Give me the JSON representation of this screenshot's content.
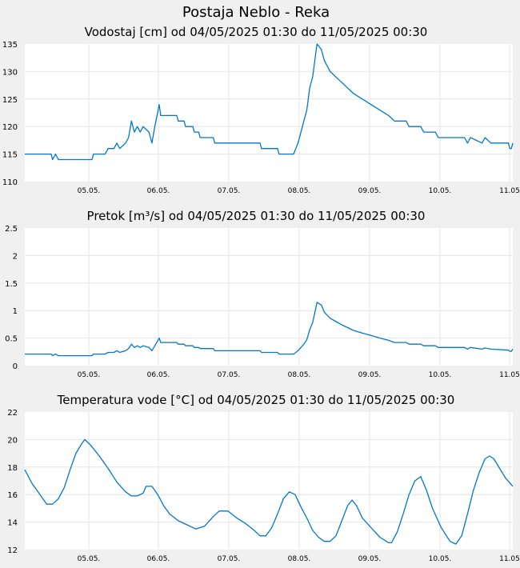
{
  "page": {
    "title": "Postaja Neblo - Reka"
  },
  "chart_data": [
    {
      "type": "line",
      "title": "Vodostaj [cm] od 04/05/2025 01:30 do 11/05/2025 00:30",
      "x_range": [
        "04/05/2025 01:30",
        "11/05/2025 00:30"
      ],
      "x_ticks": [
        "05.05.",
        "06.05.",
        "07.05.",
        "08.05.",
        "09.05.",
        "10.05.",
        "11.05"
      ],
      "y_ticks": [
        "110",
        "115",
        "120",
        "125",
        "130",
        "135"
      ],
      "ylim": [
        110,
        135
      ],
      "grid": true,
      "line_color": "#0077cc",
      "points": [
        [
          "04/05/2025 01:30",
          115
        ],
        [
          "04/05/2025 10:30",
          115
        ],
        [
          "04/05/2025 11:00",
          114
        ],
        [
          "04/05/2025 12:00",
          115
        ],
        [
          "04/05/2025 13:00",
          114
        ],
        [
          "05/05/2025 00:30",
          114
        ],
        [
          "05/05/2025 01:00",
          115
        ],
        [
          "05/05/2025 05:00",
          115
        ],
        [
          "05/05/2025 06:00",
          116
        ],
        [
          "05/05/2025 08:00",
          116
        ],
        [
          "05/05/2025 09:00",
          117
        ],
        [
          "05/05/2025 10:00",
          116
        ],
        [
          "05/05/2025 12:00",
          117
        ],
        [
          "05/05/2025 13:00",
          118
        ],
        [
          "05/05/2025 14:00",
          121
        ],
        [
          "05/05/2025 15:00",
          119
        ],
        [
          "05/05/2025 16:00",
          120
        ],
        [
          "05/05/2025 17:00",
          119
        ],
        [
          "05/05/2025 18:00",
          120
        ],
        [
          "05/05/2025 20:00",
          119
        ],
        [
          "05/05/2025 21:00",
          117
        ],
        [
          "05/05/2025 22:00",
          120
        ],
        [
          "05/05/2025 23:30",
          124
        ],
        [
          "06/05/2025 00:00",
          122
        ],
        [
          "06/05/2025 05:30",
          122
        ],
        [
          "06/05/2025 06:00",
          121
        ],
        [
          "06/05/2025 08:00",
          121
        ],
        [
          "06/05/2025 08:30",
          120
        ],
        [
          "06/05/2025 11:00",
          120
        ],
        [
          "06/05/2025 11:30",
          119
        ],
        [
          "06/05/2025 13:00",
          119
        ],
        [
          "06/05/2025 13:30",
          118
        ],
        [
          "06/05/2025 18:00",
          118
        ],
        [
          "06/05/2025 18:30",
          117
        ],
        [
          "07/05/2025 10:00",
          117
        ],
        [
          "07/05/2025 10:30",
          116
        ],
        [
          "07/05/2025 16:00",
          116
        ],
        [
          "07/05/2025 16:30",
          115
        ],
        [
          "07/05/2025 21:30",
          115
        ],
        [
          "07/05/2025 23:00",
          117
        ],
        [
          "08/05/2025 00:00",
          119
        ],
        [
          "08/05/2025 01:00",
          121
        ],
        [
          "08/05/2025 02:00",
          123
        ],
        [
          "08/05/2025 03:00",
          127
        ],
        [
          "08/05/2025 04:00",
          129
        ],
        [
          "08/05/2025 05:00",
          133
        ],
        [
          "08/05/2025 05:30",
          135
        ],
        [
          "08/05/2025 07:00",
          134
        ],
        [
          "08/05/2025 08:00",
          132
        ],
        [
          "08/05/2025 10:00",
          130
        ],
        [
          "08/05/2025 12:00",
          129
        ],
        [
          "08/05/2025 14:00",
          128
        ],
        [
          "08/05/2025 16:00",
          127
        ],
        [
          "08/05/2025 18:00",
          126
        ],
        [
          "08/05/2025 21:00",
          125
        ],
        [
          "09/05/2025 00:00",
          124
        ],
        [
          "09/05/2025 03:00",
          123
        ],
        [
          "09/05/2025 06:00",
          122
        ],
        [
          "09/05/2025 08:00",
          121
        ],
        [
          "09/05/2025 12:00",
          121
        ],
        [
          "09/05/2025 13:00",
          120
        ],
        [
          "09/05/2025 17:00",
          120
        ],
        [
          "09/05/2025 18:00",
          119
        ],
        [
          "09/05/2025 22:00",
          119
        ],
        [
          "09/05/2025 23:00",
          118
        ],
        [
          "10/05/2025 08:00",
          118
        ],
        [
          "10/05/2025 09:00",
          117
        ],
        [
          "10/05/2025 10:00",
          118
        ],
        [
          "10/05/2025 14:00",
          117
        ],
        [
          "10/05/2025 15:00",
          118
        ],
        [
          "10/05/2025 17:00",
          117
        ],
        [
          "10/05/2025 23:00",
          117
        ],
        [
          "10/05/2025 23:30",
          116
        ],
        [
          "11/05/2025 00:00",
          116
        ],
        [
          "11/05/2025 00:30",
          117
        ]
      ]
    },
    {
      "type": "line",
      "title": "Pretok [m³/s] od 04/05/2025 01:30 do 11/05/2025 00:30",
      "x_range": [
        "04/05/2025 01:30",
        "11/05/2025 00:30"
      ],
      "x_ticks": [
        "05.05.",
        "06.05.",
        "07.05.",
        "08.05.",
        "09.05.",
        "10.05.",
        "11.05"
      ],
      "y_ticks": [
        "0",
        "0.5",
        "1",
        "1.5",
        "2",
        "2.5"
      ],
      "ylim": [
        0,
        2.5
      ],
      "grid": true,
      "line_color": "#0077cc",
      "points": [
        [
          "04/05/2025 01:30",
          0.21
        ],
        [
          "04/05/2025 10:30",
          0.21
        ],
        [
          "04/05/2025 11:00",
          0.18
        ],
        [
          "04/05/2025 12:00",
          0.21
        ],
        [
          "04/05/2025 13:00",
          0.18
        ],
        [
          "05/05/2025 00:30",
          0.18
        ],
        [
          "05/05/2025 01:00",
          0.21
        ],
        [
          "05/05/2025 05:00",
          0.21
        ],
        [
          "05/05/2025 06:00",
          0.24
        ],
        [
          "05/05/2025 08:00",
          0.24
        ],
        [
          "05/05/2025 09:00",
          0.27
        ],
        [
          "05/05/2025 10:00",
          0.24
        ],
        [
          "05/05/2025 12:00",
          0.27
        ],
        [
          "05/05/2025 13:00",
          0.31
        ],
        [
          "05/05/2025 14:00",
          0.39
        ],
        [
          "05/05/2025 15:00",
          0.33
        ],
        [
          "05/05/2025 16:00",
          0.36
        ],
        [
          "05/05/2025 17:00",
          0.33
        ],
        [
          "05/05/2025 18:00",
          0.36
        ],
        [
          "05/05/2025 20:00",
          0.33
        ],
        [
          "05/05/2025 21:00",
          0.27
        ],
        [
          "05/05/2025 22:00",
          0.36
        ],
        [
          "05/05/2025 23:30",
          0.5
        ],
        [
          "06/05/2025 00:00",
          0.42
        ],
        [
          "06/05/2025 05:30",
          0.42
        ],
        [
          "06/05/2025 06:00",
          0.39
        ],
        [
          "06/05/2025 08:00",
          0.39
        ],
        [
          "06/05/2025 08:30",
          0.36
        ],
        [
          "06/05/2025 11:00",
          0.36
        ],
        [
          "06/05/2025 11:30",
          0.33
        ],
        [
          "06/05/2025 13:00",
          0.33
        ],
        [
          "06/05/2025 13:30",
          0.31
        ],
        [
          "06/05/2025 18:00",
          0.31
        ],
        [
          "06/05/2025 18:30",
          0.27
        ],
        [
          "07/05/2025 10:00",
          0.27
        ],
        [
          "07/05/2025 10:30",
          0.24
        ],
        [
          "07/05/2025 16:00",
          0.24
        ],
        [
          "07/05/2025 16:30",
          0.21
        ],
        [
          "07/05/2025 21:30",
          0.21
        ],
        [
          "07/05/2025 23:00",
          0.27
        ],
        [
          "08/05/2025 00:00",
          0.33
        ],
        [
          "08/05/2025 01:00",
          0.39
        ],
        [
          "08/05/2025 02:00",
          0.47
        ],
        [
          "08/05/2025 03:00",
          0.65
        ],
        [
          "08/05/2025 04:00",
          0.78
        ],
        [
          "08/05/2025 05:00",
          1.02
        ],
        [
          "08/05/2025 05:30",
          1.15
        ],
        [
          "08/05/2025 07:00",
          1.1
        ],
        [
          "08/05/2025 08:00",
          0.97
        ],
        [
          "08/05/2025 10:00",
          0.86
        ],
        [
          "08/05/2025 12:00",
          0.8
        ],
        [
          "08/05/2025 14:00",
          0.74
        ],
        [
          "08/05/2025 16:00",
          0.69
        ],
        [
          "08/05/2025 18:00",
          0.64
        ],
        [
          "08/05/2025 21:00",
          0.59
        ],
        [
          "09/05/2025 00:00",
          0.55
        ],
        [
          "09/05/2025 03:00",
          0.5
        ],
        [
          "09/05/2025 06:00",
          0.46
        ],
        [
          "09/05/2025 08:00",
          0.42
        ],
        [
          "09/05/2025 12:00",
          0.42
        ],
        [
          "09/05/2025 13:00",
          0.39
        ],
        [
          "09/05/2025 17:00",
          0.39
        ],
        [
          "09/05/2025 18:00",
          0.36
        ],
        [
          "09/05/2025 22:00",
          0.36
        ],
        [
          "09/05/2025 23:00",
          0.33
        ],
        [
          "10/05/2025 08:00",
          0.33
        ],
        [
          "10/05/2025 09:00",
          0.3
        ],
        [
          "10/05/2025 10:00",
          0.33
        ],
        [
          "10/05/2025 14:00",
          0.3
        ],
        [
          "10/05/2025 15:00",
          0.32
        ],
        [
          "10/05/2025 17:00",
          0.3
        ],
        [
          "10/05/2025 23:00",
          0.28
        ],
        [
          "10/05/2025 23:30",
          0.26
        ],
        [
          "11/05/2025 00:00",
          0.26
        ],
        [
          "11/05/2025 00:30",
          0.3
        ]
      ]
    },
    {
      "type": "line",
      "title": "Temperatura vode [°C] od 04/05/2025 01:30 do 11/05/2025 00:30",
      "x_range": [
        "04/05/2025 01:30",
        "11/05/2025 00:30"
      ],
      "x_ticks": [
        "05.05.",
        "06.05.",
        "07.05.",
        "08.05.",
        "09.05.",
        "10.05.",
        "11.05"
      ],
      "y_ticks": [
        "12",
        "14",
        "16",
        "18",
        "20",
        "22"
      ],
      "ylim": [
        12,
        22
      ],
      "grid": true,
      "line_color": "#0077cc",
      "points": [
        [
          "04/05/2025 01:30",
          17.8
        ],
        [
          "04/05/2025 04:00",
          16.8
        ],
        [
          "04/05/2025 07:00",
          15.9
        ],
        [
          "04/05/2025 09:00",
          15.3
        ],
        [
          "04/05/2025 11:00",
          15.3
        ],
        [
          "04/05/2025 13:00",
          15.7
        ],
        [
          "04/05/2025 15:00",
          16.5
        ],
        [
          "04/05/2025 17:00",
          17.8
        ],
        [
          "04/05/2025 19:00",
          19.0
        ],
        [
          "04/05/2025 21:00",
          19.7
        ],
        [
          "04/05/2025 22:00",
          20.0
        ],
        [
          "05/05/2025 00:00",
          19.6
        ],
        [
          "05/05/2025 03:00",
          18.8
        ],
        [
          "05/05/2025 06:00",
          17.9
        ],
        [
          "05/05/2025 09:00",
          16.9
        ],
        [
          "05/05/2025 12:00",
          16.2
        ],
        [
          "05/05/2025 14:00",
          15.9
        ],
        [
          "05/05/2025 16:00",
          15.9
        ],
        [
          "05/05/2025 18:00",
          16.1
        ],
        [
          "05/05/2025 19:00",
          16.6
        ],
        [
          "05/05/2025 21:00",
          16.6
        ],
        [
          "05/05/2025 23:00",
          16.0
        ],
        [
          "06/05/2025 01:00",
          15.2
        ],
        [
          "06/05/2025 03:00",
          14.6
        ],
        [
          "06/05/2025 06:00",
          14.1
        ],
        [
          "06/05/2025 09:00",
          13.8
        ],
        [
          "06/05/2025 12:00",
          13.5
        ],
        [
          "06/05/2025 15:00",
          13.7
        ],
        [
          "06/05/2025 18:00",
          14.4
        ],
        [
          "06/05/2025 20:00",
          14.8
        ],
        [
          "06/05/2025 23:00",
          14.8
        ],
        [
          "07/05/2025 02:00",
          14.3
        ],
        [
          "07/05/2025 05:00",
          13.9
        ],
        [
          "07/05/2025 08:00",
          13.4
        ],
        [
          "07/05/2025 10:00",
          13.0
        ],
        [
          "07/05/2025 12:00",
          13.0
        ],
        [
          "07/05/2025 14:00",
          13.6
        ],
        [
          "07/05/2025 16:00",
          14.6
        ],
        [
          "07/05/2025 18:00",
          15.7
        ],
        [
          "07/05/2025 20:00",
          16.2
        ],
        [
          "07/05/2025 22:00",
          16.0
        ],
        [
          "08/05/2025 00:00",
          15.1
        ],
        [
          "08/05/2025 02:00",
          14.3
        ],
        [
          "08/05/2025 04:00",
          13.4
        ],
        [
          "08/05/2025 06:00",
          12.9
        ],
        [
          "08/05/2025 08:00",
          12.6
        ],
        [
          "08/05/2025 10:00",
          12.6
        ],
        [
          "08/05/2025 12:00",
          13.0
        ],
        [
          "08/05/2025 14:00",
          14.1
        ],
        [
          "08/05/2025 16:00",
          15.2
        ],
        [
          "08/05/2025 17:30",
          15.6
        ],
        [
          "08/05/2025 19:00",
          15.2
        ],
        [
          "08/05/2025 21:00",
          14.3
        ],
        [
          "09/05/2025 00:00",
          13.6
        ],
        [
          "09/05/2025 03:00",
          12.9
        ],
        [
          "09/05/2025 06:00",
          12.5
        ],
        [
          "09/05/2025 07:00",
          12.5
        ],
        [
          "09/05/2025 09:00",
          13.3
        ],
        [
          "09/05/2025 11:00",
          14.6
        ],
        [
          "09/05/2025 13:00",
          16.0
        ],
        [
          "09/05/2025 15:00",
          17.0
        ],
        [
          "09/05/2025 17:00",
          17.3
        ],
        [
          "09/05/2025 19:00",
          16.3
        ],
        [
          "09/05/2025 21:00",
          15.0
        ],
        [
          "10/05/2025 00:00",
          13.6
        ],
        [
          "10/05/2025 03:00",
          12.6
        ],
        [
          "10/05/2025 05:00",
          12.4
        ],
        [
          "10/05/2025 07:00",
          13.0
        ],
        [
          "10/05/2025 09:00",
          14.6
        ],
        [
          "10/05/2025 11:00",
          16.3
        ],
        [
          "10/05/2025 13:00",
          17.6
        ],
        [
          "10/05/2025 15:00",
          18.6
        ],
        [
          "10/05/2025 16:30",
          18.8
        ],
        [
          "10/05/2025 18:00",
          18.6
        ],
        [
          "10/05/2025 20:00",
          17.9
        ],
        [
          "10/05/2025 22:00",
          17.2
        ],
        [
          "11/05/2025 00:30",
          16.6
        ]
      ]
    }
  ]
}
